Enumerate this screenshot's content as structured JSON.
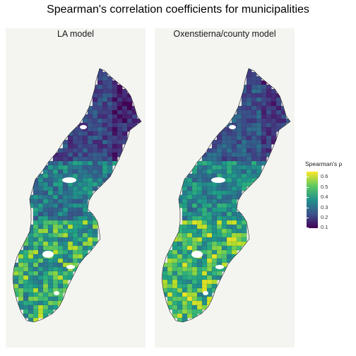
{
  "figure": {
    "title": "Spearman's correlation coefficients for municipalities"
  },
  "panels": [
    {
      "label": "LA model",
      "seed": 11,
      "palette_shift": -0.02
    },
    {
      "label": "Oxenstierna/county model",
      "seed": 29,
      "palette_shift": 0.03
    }
  ],
  "legend": {
    "title": "Spearman's ρ",
    "ticks": [
      "0.6",
      "0.5",
      "0.4",
      "0.3",
      "0.2",
      "0.1"
    ],
    "scale": "viridis",
    "range": [
      0.1,
      0.65
    ],
    "position": "right"
  },
  "colors": {
    "panel_background": "#f4f4f1",
    "map_border": "#1a1a1a",
    "viridis_low": "#440154",
    "viridis_high": "#fde725"
  }
}
